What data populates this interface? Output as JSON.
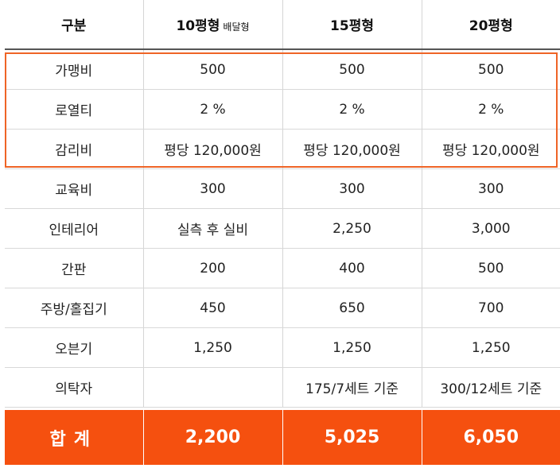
{
  "header": {
    "col0": "구분",
    "col1": "10평형",
    "col1_note": "배달형",
    "col2": "15평형",
    "col3": "20평형"
  },
  "rows": [
    {
      "label": "가맹비",
      "values": [
        "500",
        "500",
        "500"
      ]
    },
    {
      "label": "로열티",
      "values": [
        "2 %",
        "2 %",
        "2 %"
      ]
    },
    {
      "label": "감리비",
      "values": [
        "평당 120,000원",
        "평당 120,000원",
        "평당 120,000원"
      ]
    },
    {
      "label": "교육비",
      "values": [
        "300",
        "300",
        "300"
      ]
    },
    {
      "label": "인테리어",
      "values": [
        "실측 후 실비",
        "2,250",
        "3,000"
      ]
    },
    {
      "label": "간판",
      "values": [
        "200",
        "400",
        "500"
      ]
    },
    {
      "label": "주방/홀집기",
      "values": [
        "450",
        "650",
        "700"
      ]
    },
    {
      "label": "오븐기",
      "values": [
        "1,250",
        "1,250",
        "1,250"
      ]
    },
    {
      "label": "의탁자",
      "values": [
        "",
        "175/7세트 기준",
        "300/12세트 기준"
      ]
    }
  ],
  "total": {
    "label": "합계",
    "values": [
      "2,200",
      "5,025",
      "6,050"
    ]
  },
  "colors": {
    "accent": "#f5500f",
    "highlight_border": "#ef6426"
  }
}
